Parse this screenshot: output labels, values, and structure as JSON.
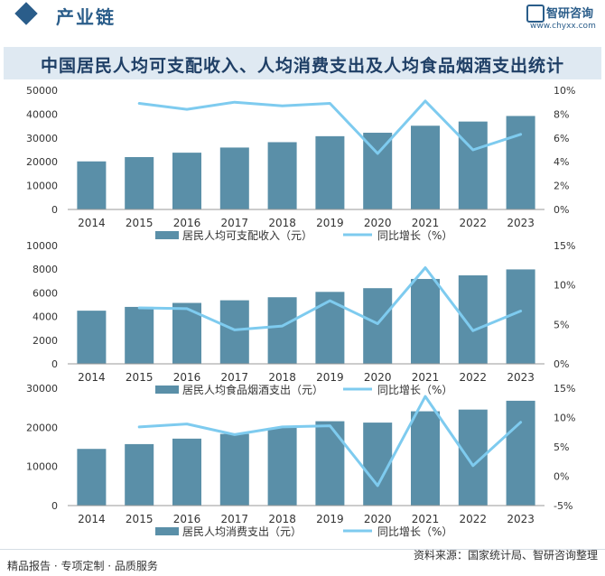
{
  "header": {
    "section_title": "产业链",
    "logo_name": "智研咨询",
    "logo_url": "www.chyxx.com"
  },
  "main_title": "中国居民人均可支配收入、人均消费支出及人均食品烟酒支出统计",
  "footer": {
    "left": "精品报告 · 专项定制 · 品质服务",
    "right": "资料来源：国家统计局、智研咨询整理"
  },
  "colors": {
    "bar": "#5a8fa8",
    "line": "#7ecbef",
    "axis": "#999999"
  },
  "chart_data": [
    {
      "type": "bar",
      "categories": [
        "2014",
        "2015",
        "2016",
        "2017",
        "2018",
        "2019",
        "2020",
        "2021",
        "2022",
        "2023"
      ],
      "series": [
        {
          "name": "居民人均可支配收入（元）",
          "type": "bar",
          "axis": "left",
          "values": [
            20167,
            21966,
            23821,
            25974,
            28228,
            30733,
            32189,
            35128,
            36883,
            39218
          ]
        },
        {
          "name": "同比增长（%）",
          "type": "line",
          "axis": "right",
          "values": [
            null,
            8.9,
            8.4,
            9.0,
            8.7,
            8.9,
            4.7,
            9.1,
            5.0,
            6.3
          ]
        }
      ],
      "left_ticks": [
        "0",
        "10000",
        "20000",
        "30000",
        "40000",
        "50000"
      ],
      "left_range": [
        0,
        50000
      ],
      "right_ticks": [
        "0%",
        "2%",
        "4%",
        "6%",
        "8%",
        "10%"
      ],
      "right_range": [
        0,
        10
      ]
    },
    {
      "type": "bar",
      "categories": [
        "2014",
        "2015",
        "2016",
        "2017",
        "2018",
        "2019",
        "2020",
        "2021",
        "2022",
        "2023"
      ],
      "series": [
        {
          "name": "居民人均食品烟酒支出（元）",
          "type": "bar",
          "axis": "left",
          "values": [
            4494,
            4814,
            5151,
            5374,
            5631,
            6084,
            6397,
            7178,
            7481,
            7983
          ]
        },
        {
          "name": "同比增长（%）",
          "type": "line",
          "axis": "right",
          "values": [
            null,
            7.1,
            7.0,
            4.3,
            4.8,
            8.0,
            5.1,
            12.2,
            4.2,
            6.7
          ]
        }
      ],
      "left_ticks": [
        "0",
        "2000",
        "4000",
        "6000",
        "8000",
        "10000"
      ],
      "left_range": [
        0,
        10000
      ],
      "right_ticks": [
        "0%",
        "5%",
        "10%",
        "15%"
      ],
      "right_range": [
        0,
        15
      ]
    },
    {
      "type": "bar",
      "categories": [
        "2014",
        "2015",
        "2016",
        "2017",
        "2018",
        "2019",
        "2020",
        "2021",
        "2022",
        "2023"
      ],
      "series": [
        {
          "name": "居民人均消费支出（元）",
          "type": "bar",
          "axis": "left",
          "values": [
            14491,
            15712,
            17111,
            18322,
            19853,
            21559,
            21210,
            24100,
            24538,
            26796
          ]
        },
        {
          "name": "同比增长（%）",
          "type": "line",
          "axis": "right",
          "values": [
            null,
            8.4,
            8.9,
            7.1,
            8.4,
            8.6,
            -1.6,
            13.6,
            1.8,
            9.2
          ]
        }
      ],
      "left_ticks": [
        "0",
        "10000",
        "20000",
        "30000"
      ],
      "left_range": [
        0,
        30000
      ],
      "right_ticks": [
        "-5%",
        "0%",
        "5%",
        "10%",
        "15%"
      ],
      "right_range": [
        -5,
        15
      ]
    }
  ]
}
